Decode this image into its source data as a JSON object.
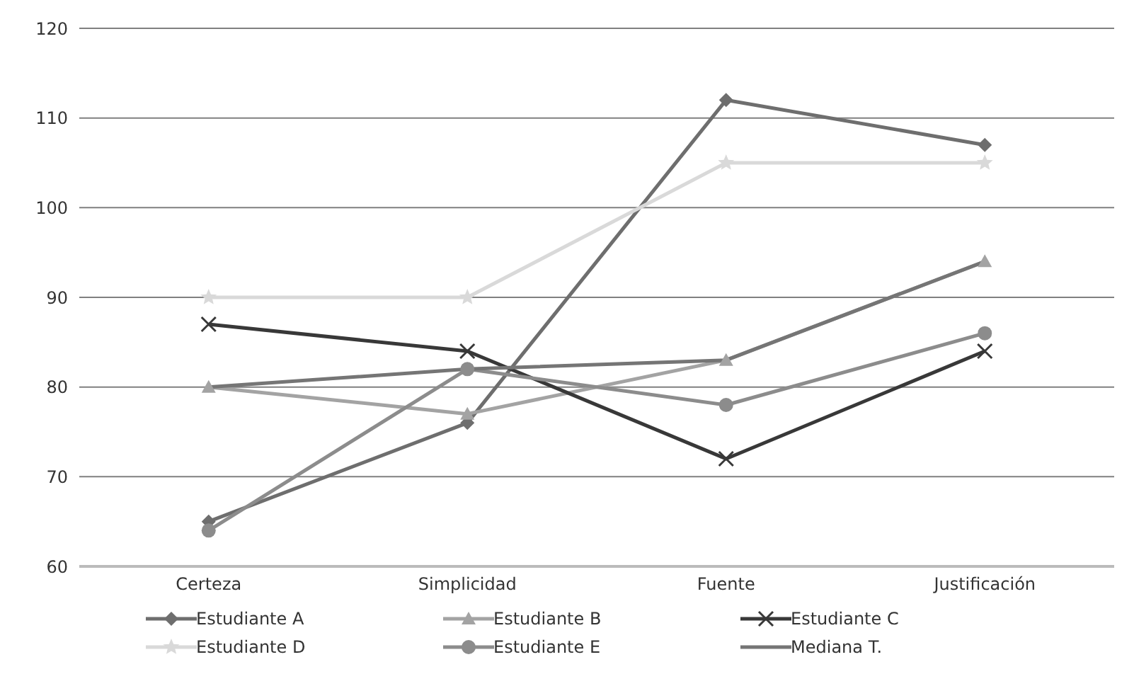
{
  "chart_data": {
    "type": "line",
    "categories": [
      "Certeza",
      "Simplicidad",
      "Fuente",
      "Justificación"
    ],
    "ylim": [
      60,
      120
    ],
    "yticks": [
      60,
      70,
      80,
      90,
      100,
      110,
      120
    ],
    "grid": "y",
    "legend": "bottom",
    "series": [
      {
        "name": "Estudiante A",
        "color": "#6e6e6e",
        "marker": "diamond",
        "values": [
          65,
          76,
          112,
          107
        ]
      },
      {
        "name": "Estudiante B",
        "color": "#a3a3a3",
        "marker": "triangle",
        "values": [
          80,
          77,
          83,
          94
        ]
      },
      {
        "name": "Estudiante C",
        "color": "#383838",
        "marker": "cross",
        "values": [
          87,
          84,
          72,
          84
        ]
      },
      {
        "name": "Estudiante D",
        "color": "#d9d9d9",
        "marker": "star",
        "values": [
          90,
          90,
          105,
          105
        ]
      },
      {
        "name": "Estudiante E",
        "color": "#8c8c8c",
        "marker": "circle",
        "values": [
          64,
          82,
          78,
          86
        ]
      },
      {
        "name": "Mediana T.",
        "color": "#757575",
        "marker": "none",
        "values": [
          80,
          82,
          83,
          94
        ]
      }
    ]
  }
}
